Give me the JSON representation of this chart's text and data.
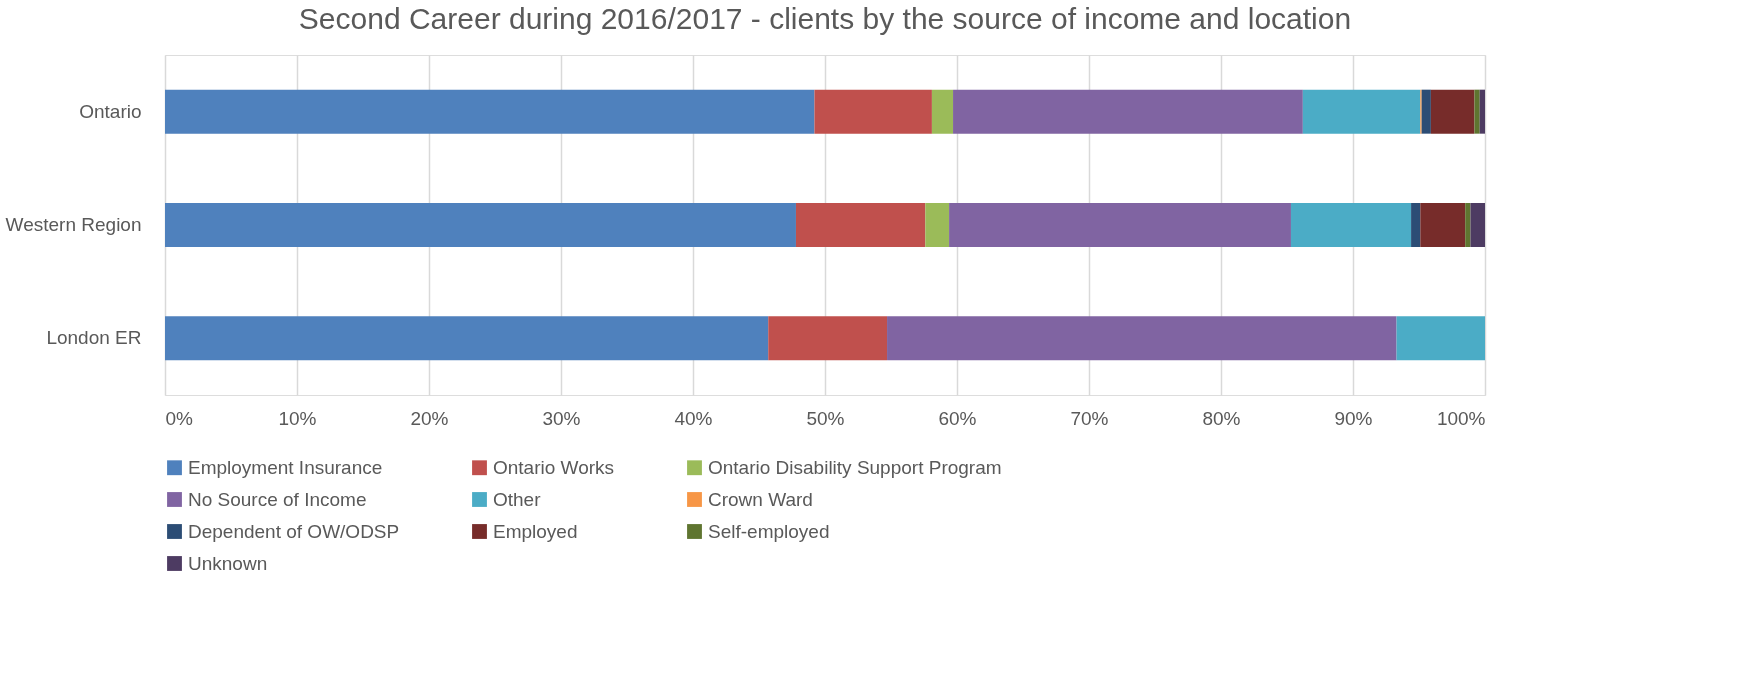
{
  "chart_data": {
    "type": "bar",
    "orientation": "horizontal",
    "stacked": true,
    "title": "Second Career during 2016/2017 - clients by the source of income and location",
    "categories": [
      "Ontario",
      "Western Region",
      "London ER"
    ],
    "series": [
      {
        "name": "Employment Insurance",
        "color": "#4f81bd",
        "values": [
          49.2,
          47.8,
          45.7
        ]
      },
      {
        "name": "Ontario Works",
        "color": "#c0504d",
        "values": [
          8.9,
          9.8,
          9.0
        ]
      },
      {
        "name": "Ontario Disability Support Program",
        "color": "#9bbb59",
        "values": [
          1.6,
          1.8,
          0
        ]
      },
      {
        "name": "No Source of Income",
        "color": "#8064a2",
        "values": [
          26.5,
          25.9,
          38.6
        ]
      },
      {
        "name": "Other",
        "color": "#4bacc6",
        "values": [
          8.9,
          9.1,
          6.7
        ]
      },
      {
        "name": "Crown Ward",
        "color": "#f79646",
        "values": [
          0.1,
          0,
          0
        ]
      },
      {
        "name": "Dependent of OW/ODSP",
        "color": "#2c4d75",
        "values": [
          0.7,
          0.7,
          0
        ]
      },
      {
        "name": "Employed",
        "color": "#772c2a",
        "values": [
          3.3,
          3.4,
          0
        ]
      },
      {
        "name": "Self-employed",
        "color": "#5f7530",
        "values": [
          0.4,
          0.4,
          0
        ]
      },
      {
        "name": "Unknown",
        "color": "#4d3b62",
        "values": [
          0.4,
          1.1,
          0
        ]
      }
    ],
    "xlim": [
      0,
      100
    ],
    "xticks": [
      {
        "value": 0,
        "label": "0%"
      },
      {
        "value": 10,
        "label": "10%"
      },
      {
        "value": 20,
        "label": "20%"
      },
      {
        "value": 30,
        "label": "30%"
      },
      {
        "value": 40,
        "label": "40%"
      },
      {
        "value": 50,
        "label": "50%"
      },
      {
        "value": 60,
        "label": "60%"
      },
      {
        "value": 70,
        "label": "70%"
      },
      {
        "value": 80,
        "label": "80%"
      },
      {
        "value": 90,
        "label": "90%"
      },
      {
        "value": 100,
        "label": "100%"
      }
    ],
    "grid": "x",
    "legend": "bottom"
  }
}
